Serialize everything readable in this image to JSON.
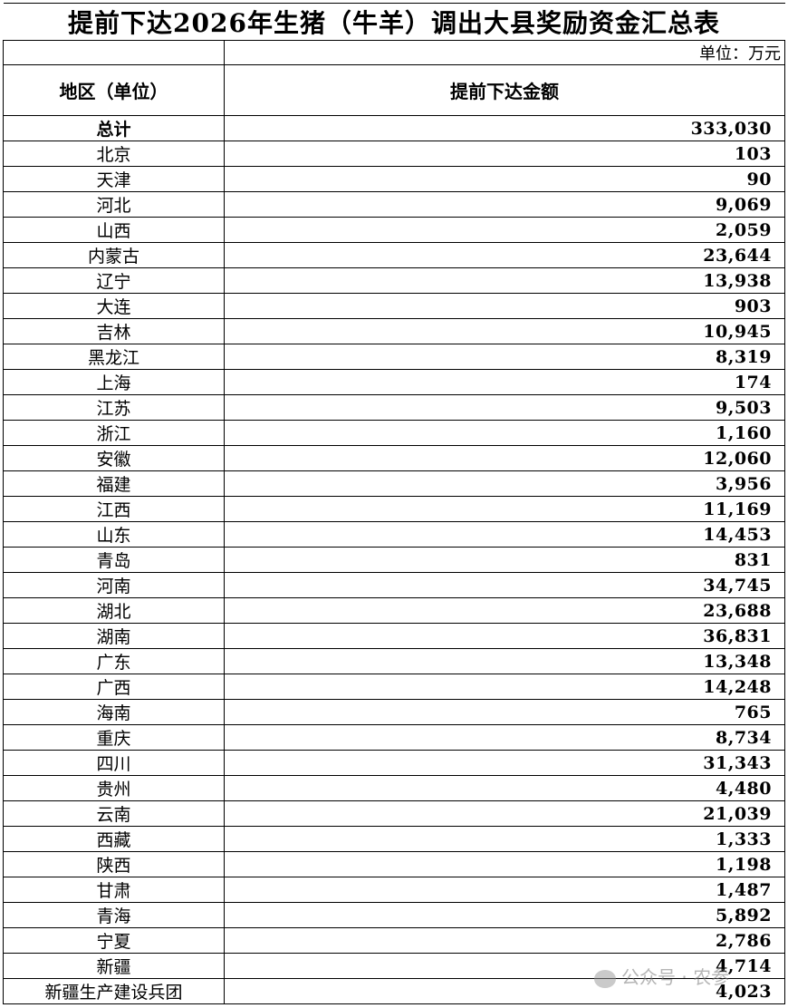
{
  "title": "提前下达2026年生猪（牛羊）调出大县奖励资金汇总表",
  "unit": "单位：万元",
  "headers": {
    "region": "地区（单位）",
    "amount": "提前下达金额"
  },
  "total": {
    "name": "总计",
    "value": "333,030"
  },
  "rows": [
    {
      "name": "北京",
      "value": "103"
    },
    {
      "name": "天津",
      "value": "90"
    },
    {
      "name": "河北",
      "value": "9,069"
    },
    {
      "name": "山西",
      "value": "2,059"
    },
    {
      "name": "内蒙古",
      "value": "23,644"
    },
    {
      "name": "辽宁",
      "value": "13,938"
    },
    {
      "name": "大连",
      "value": "903"
    },
    {
      "name": "吉林",
      "value": "10,945"
    },
    {
      "name": "黑龙江",
      "value": "8,319"
    },
    {
      "name": "上海",
      "value": "174"
    },
    {
      "name": "江苏",
      "value": "9,503"
    },
    {
      "name": "浙江",
      "value": "1,160"
    },
    {
      "name": "安徽",
      "value": "12,060"
    },
    {
      "name": "福建",
      "value": "3,956"
    },
    {
      "name": "江西",
      "value": "11,169"
    },
    {
      "name": "山东",
      "value": "14,453"
    },
    {
      "name": "青岛",
      "value": "831"
    },
    {
      "name": "河南",
      "value": "34,745"
    },
    {
      "name": "湖北",
      "value": "23,688"
    },
    {
      "name": "湖南",
      "value": "36,831"
    },
    {
      "name": "广东",
      "value": "13,348"
    },
    {
      "name": "广西",
      "value": "14,248"
    },
    {
      "name": "海南",
      "value": "765"
    },
    {
      "name": "重庆",
      "value": "8,734"
    },
    {
      "name": "四川",
      "value": "31,343"
    },
    {
      "name": "贵州",
      "value": "4,480"
    },
    {
      "name": "云南",
      "value": "21,039"
    },
    {
      "name": "西藏",
      "value": "1,333"
    },
    {
      "name": "陕西",
      "value": "1,198"
    },
    {
      "name": "甘肃",
      "value": "1,487"
    },
    {
      "name": "青海",
      "value": "5,892"
    },
    {
      "name": "宁夏",
      "value": "2,786"
    },
    {
      "name": "新疆",
      "value": "4,714"
    },
    {
      "name": "新疆生产建设兵团",
      "value": "4,023"
    }
  ],
  "watermark": {
    "text": "公众号 · 农参",
    "icon": "wechat-icon"
  }
}
